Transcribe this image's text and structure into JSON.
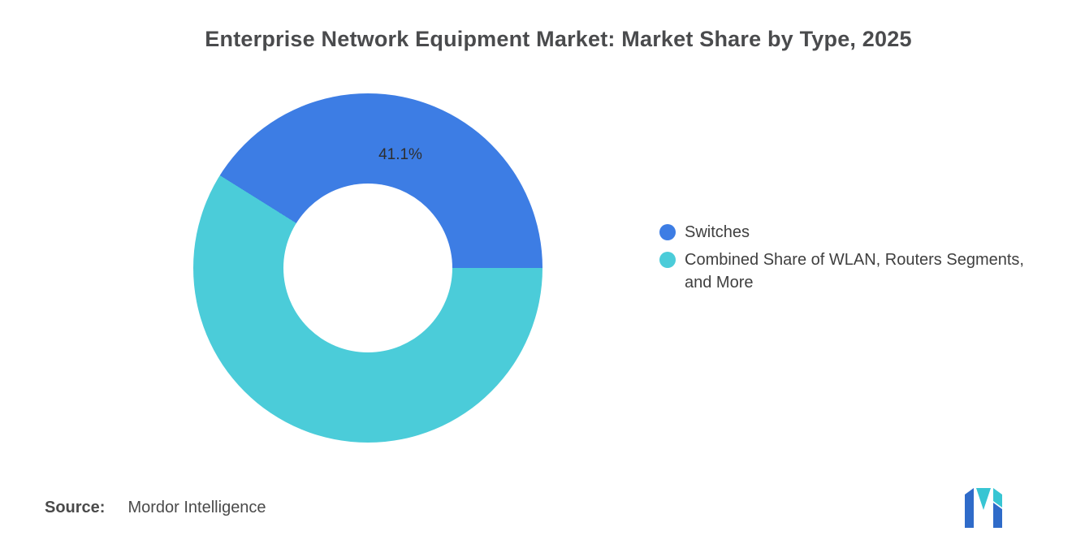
{
  "title": "Enterprise Network Equipment Market: Market Share by Type, 2025",
  "chart_data": {
    "type": "pie",
    "donut": true,
    "title": "Enterprise Network Equipment Market: Market Share by Type, 2025",
    "categories": [
      "Switches",
      "Combined Share of WLAN, Routers Segments, and More"
    ],
    "values": [
      41.1,
      58.9
    ],
    "colors": [
      "#3D7DE4",
      "#4BCCD9"
    ],
    "slice_labels": [
      "41.1%"
    ],
    "legend_position": "right",
    "start_edge": "first slice ends at 3 o'clock"
  },
  "legend": {
    "items": [
      {
        "label": "Switches"
      },
      {
        "label": "Combined Share of WLAN, Routers Segments, and More"
      }
    ]
  },
  "source": {
    "label": "Source:",
    "value": "Mordor Intelligence"
  },
  "logo": {
    "name": "mordor-intelligence-logo",
    "blue": "#2F6BC9",
    "teal": "#38C5D3"
  }
}
